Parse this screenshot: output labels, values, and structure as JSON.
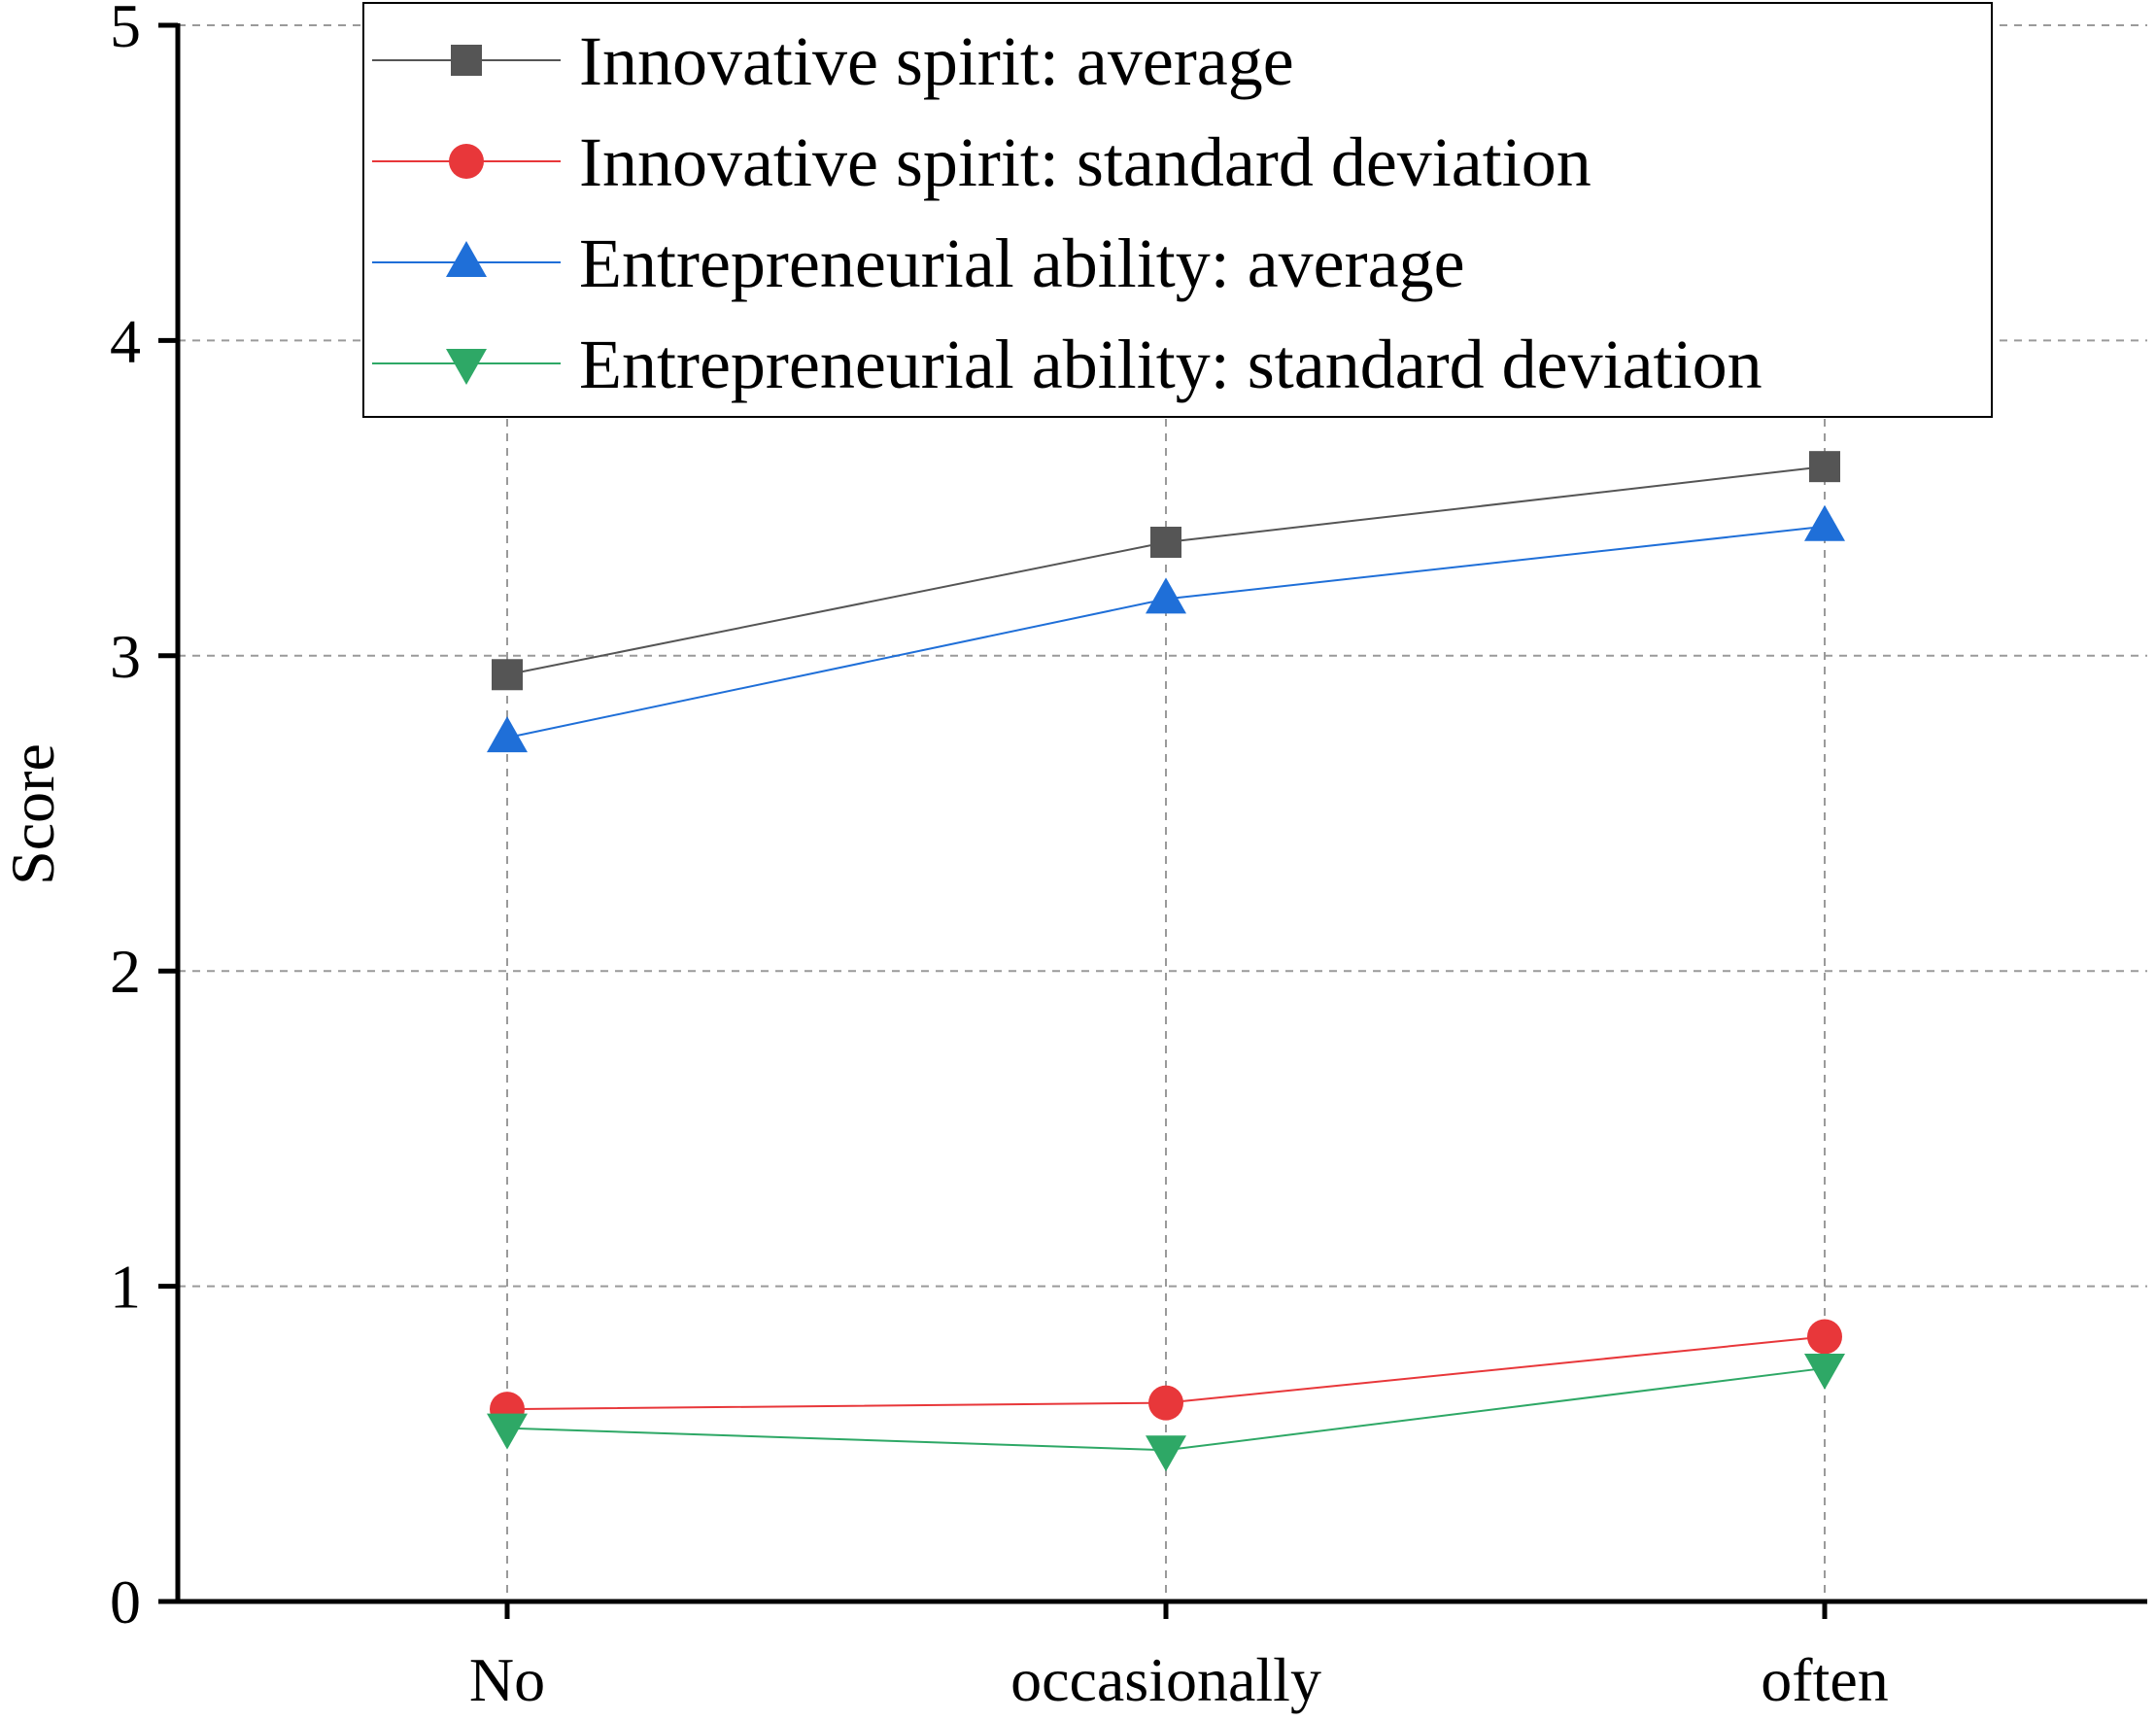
{
  "chart_data": {
    "type": "line",
    "title": "",
    "xlabel": "",
    "ylabel": "Score",
    "categories": [
      "No",
      "occasionally",
      "often"
    ],
    "ylim": [
      0,
      5
    ],
    "yticks": [
      0,
      1,
      2,
      3,
      4,
      5
    ],
    "grid": true,
    "legend_position": "top",
    "series": [
      {
        "name": "Innovative spirit: average",
        "values": [
          2.94,
          3.36,
          3.6
        ],
        "color": "#555555",
        "marker": "square"
      },
      {
        "name": "Innovative spirit: standard deviation",
        "values": [
          0.61,
          0.63,
          0.84
        ],
        "color": "#e8373a",
        "marker": "circle"
      },
      {
        "name": "Entrepreneurial ability: average",
        "values": [
          2.74,
          3.18,
          3.41
        ],
        "color": "#1f6fd8",
        "marker": "triangle-up"
      },
      {
        "name": "Entrepreneurial ability: standard deviation",
        "values": [
          0.55,
          0.48,
          0.74
        ],
        "color": "#2ea866",
        "marker": "triangle-down"
      }
    ]
  }
}
